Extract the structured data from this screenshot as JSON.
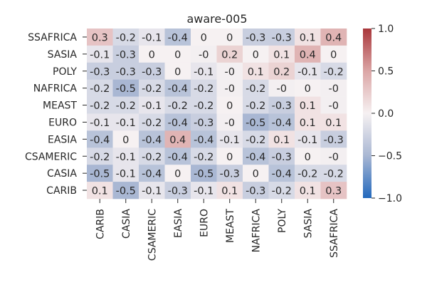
{
  "chart_data": {
    "type": "heatmap",
    "title": "aware-005",
    "rows": [
      "SSAFRICA",
      "SASIA",
      "POLY",
      "NAFRICA",
      "MEAST",
      "EURO",
      "EASIA",
      "CSAMERIC",
      "CASIA",
      "CARIB"
    ],
    "columns": [
      "CARIB",
      "CASIA",
      "CSAMERIC",
      "EASIA",
      "EURO",
      "MEAST",
      "NAFRICA",
      "POLY",
      "SASIA",
      "SSAFRICA"
    ],
    "values": [
      [
        0.3,
        -0.2,
        -0.1,
        -0.4,
        0,
        0,
        -0.3,
        -0.3,
        0.1,
        0.4
      ],
      [
        -0.1,
        -0.3,
        0,
        0,
        -0.02,
        0.2,
        0,
        0.1,
        0.4,
        0
      ],
      [
        -0.3,
        -0.3,
        -0.3,
        0,
        -0.1,
        -0.02,
        0.1,
        0.2,
        -0.1,
        -0.2
      ],
      [
        -0.2,
        -0.5,
        -0.2,
        -0.4,
        -0.2,
        -0.02,
        -0.2,
        -0.02,
        0,
        -0.02
      ],
      [
        -0.2,
        -0.2,
        -0.1,
        -0.2,
        -0.2,
        0,
        -0.2,
        -0.3,
        0.1,
        -0.02
      ],
      [
        -0.1,
        -0.1,
        -0.2,
        -0.4,
        -0.3,
        -0.02,
        -0.5,
        -0.4,
        0.1,
        0.1
      ],
      [
        -0.4,
        0,
        -0.4,
        0.4,
        -0.4,
        -0.1,
        -0.2,
        0.1,
        -0.1,
        -0.3
      ],
      [
        -0.2,
        -0.1,
        -0.2,
        -0.4,
        -0.2,
        0,
        -0.4,
        -0.3,
        0,
        -0.02
      ],
      [
        -0.5,
        -0.1,
        -0.4,
        0,
        -0.5,
        -0.3,
        0,
        -0.4,
        -0.2,
        -0.2
      ],
      [
        0.1,
        -0.5,
        -0.1,
        -0.3,
        -0.1,
        0.1,
        -0.3,
        -0.2,
        0.1,
        0.3
      ]
    ],
    "cell_labels": [
      [
        "0.3",
        "-0.2",
        "-0.1",
        "-0.4",
        "0",
        "0",
        "-0.3",
        "-0.3",
        "0.1",
        "0.4"
      ],
      [
        "-0.1",
        "-0.3",
        "0",
        "0",
        "-0",
        "0.2",
        "0",
        "0.1",
        "0.4",
        "0"
      ],
      [
        "-0.3",
        "-0.3",
        "-0.3",
        "0",
        "-0.1",
        "-0",
        "0.1",
        "0.2",
        "-0.1",
        "-0.2"
      ],
      [
        "-0.2",
        "-0.5",
        "-0.2",
        "-0.4",
        "-0.2",
        "-0",
        "-0.2",
        "-0",
        "0",
        "-0"
      ],
      [
        "-0.2",
        "-0.2",
        "-0.1",
        "-0.2",
        "-0.2",
        "0",
        "-0.2",
        "-0.3",
        "0.1",
        "-0"
      ],
      [
        "-0.1",
        "-0.1",
        "-0.2",
        "-0.4",
        "-0.3",
        "-0",
        "-0.5",
        "-0.4",
        "0.1",
        "0.1"
      ],
      [
        "-0.4",
        "0",
        "-0.4",
        "0.4",
        "-0.4",
        "-0.1",
        "-0.2",
        "0.1",
        "-0.1",
        "-0.3"
      ],
      [
        "-0.2",
        "-0.1",
        "-0.2",
        "-0.4",
        "-0.2",
        "0",
        "-0.4",
        "-0.3",
        "0",
        "-0"
      ],
      [
        "-0.5",
        "-0.1",
        "-0.4",
        "0",
        "-0.5",
        "-0.3",
        "0",
        "-0.4",
        "-0.2",
        "-0.2"
      ],
      [
        "0.1",
        "-0.5",
        "-0.1",
        "-0.3",
        "-0.1",
        "0.1",
        "-0.3",
        "-0.2",
        "0.1",
        "0.3"
      ]
    ],
    "vmin": -1.0,
    "vmax": 1.0,
    "colormap": "vlag",
    "colormap_stops": [
      "#2369bd",
      "#a9b7d3",
      "#f6f1f2",
      "#dba5a5",
      "#a9373b"
    ],
    "colorbar_ticks": [
      "−1.0",
      "−0.5",
      "0.0",
      "0.5",
      "1.0"
    ],
    "colorbar_tick_values": [
      -1.0,
      -0.5,
      0.0,
      0.5,
      1.0
    ],
    "xlabel": "",
    "ylabel": ""
  }
}
